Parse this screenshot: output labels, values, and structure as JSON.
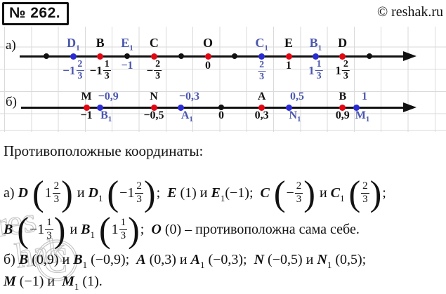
{
  "header": {
    "problem_number": "№ 262.",
    "copyright": "© reshak.ru"
  },
  "colors": {
    "red": "#e30613",
    "blue_dot": "#2b2bd4",
    "blue_text": "#4a57ae",
    "ink": "#121212"
  },
  "watermark": {
    "line1": "res",
    "line2": "hak",
    "symbol": "©"
  },
  "number_lines": {
    "a": {
      "label": "а)",
      "points": [
        {
          "v": -2,
          "dot": "black"
        },
        {
          "v": -1.6667,
          "dot": "blue",
          "top": {
            "text": "D",
            "sub": "1",
            "color": "blue"
          },
          "bottom": {
            "int": "−1",
            "num": "2",
            "den": "3",
            "color": "blue"
          }
        },
        {
          "v": -1.3333,
          "dot": "red",
          "top": {
            "text": "B",
            "color": "black"
          },
          "bottom": {
            "int": "−1",
            "num": "1",
            "den": "3",
            "color": "black"
          }
        },
        {
          "v": -1,
          "dot": "black",
          "top": {
            "text": "E",
            "sub": "1",
            "color": "blue"
          },
          "bottom": {
            "text": "−1",
            "color": "blue"
          }
        },
        {
          "v": -0.6667,
          "dot": "red",
          "top": {
            "text": "C",
            "color": "black"
          },
          "bottom": {
            "int": "−",
            "num": "2",
            "den": "3",
            "color": "black"
          }
        },
        {
          "v": -0.3333,
          "dot": "black"
        },
        {
          "v": 0,
          "dot": "red",
          "top": {
            "text": "O",
            "color": "black"
          },
          "bottom": {
            "text": "0",
            "color": "black"
          }
        },
        {
          "v": 0.3333,
          "dot": "black"
        },
        {
          "v": 0.6667,
          "dot": "blue",
          "top": {
            "text": "C",
            "sub": "1",
            "color": "blue"
          },
          "bottom": {
            "int": "",
            "num": "2",
            "den": "3",
            "color": "blue"
          }
        },
        {
          "v": 1,
          "dot": "red",
          "top": {
            "text": "E",
            "color": "black"
          },
          "bottom": {
            "text": "1",
            "color": "black"
          }
        },
        {
          "v": 1.3333,
          "dot": "blue",
          "top": {
            "text": "B",
            "sub": "1",
            "color": "blue"
          },
          "bottom": {
            "int": "1",
            "num": "1",
            "den": "3",
            "color": "blue"
          }
        },
        {
          "v": 1.6667,
          "dot": "red",
          "top": {
            "text": "D",
            "color": "black"
          },
          "bottom": {
            "int": "1",
            "num": "2",
            "den": "3",
            "color": "black"
          }
        },
        {
          "v": 2,
          "dot": "black"
        }
      ]
    },
    "b": {
      "label": "б)",
      "points": [
        {
          "v": -1,
          "dot": "red",
          "top": {
            "text": "M",
            "color": "black"
          },
          "bottom": {
            "text": "−1",
            "color": "black"
          }
        },
        {
          "v": -0.9,
          "dot": "blue",
          "top": {
            "text": "−0,9",
            "color": "blue"
          },
          "bottom": {
            "text": "B",
            "sub": "1",
            "color": "blue"
          }
        },
        {
          "v": -0.5,
          "dot": "red",
          "top": {
            "text": "N",
            "color": "black"
          },
          "bottom": {
            "text": "−0,5",
            "color": "black"
          }
        },
        {
          "v": -0.3,
          "dot": "blue",
          "top": {
            "text": "−0,3",
            "color": "blue"
          },
          "bottom": {
            "text": "A",
            "sub": "1",
            "color": "blue"
          }
        },
        {
          "v": 0,
          "dot": "black",
          "bottom": {
            "text": "0",
            "color": "black"
          }
        },
        {
          "v": 0.3,
          "dot": "red",
          "top": {
            "text": "A",
            "color": "black"
          },
          "bottom": {
            "text": "0,3",
            "color": "black"
          }
        },
        {
          "v": 0.5,
          "dot": "blue",
          "top": {
            "text": "0,5",
            "color": "blue"
          },
          "bottom": {
            "text": "N",
            "sub": "1",
            "color": "blue"
          }
        },
        {
          "v": 0.9,
          "dot": "red",
          "top": {
            "text": "B",
            "color": "black"
          },
          "bottom": {
            "text": "0,9",
            "color": "black"
          }
        },
        {
          "v": 1,
          "dot": "blue",
          "top": {
            "text": "1",
            "color": "blue"
          },
          "bottom": {
            "text": "M",
            "sub": "1",
            "color": "blue"
          }
        }
      ]
    }
  },
  "solution": {
    "title": "Противоположные координаты:",
    "lines": [
      [
        {
          "t": "а) "
        },
        {
          "i": "D"
        },
        {
          "t": " "
        },
        {
          "frac": {
            "pre": "1",
            "num": "2",
            "den": "3"
          }
        },
        {
          "t": " и "
        },
        {
          "i": "D"
        },
        {
          "sub": "1"
        },
        {
          "t": " "
        },
        {
          "frac": {
            "pre": "−1",
            "num": "2",
            "den": "3"
          }
        },
        {
          "t": ";  "
        },
        {
          "i": "E"
        },
        {
          "t": " (1) и "
        },
        {
          "i": "E"
        },
        {
          "sub": "1"
        },
        {
          "t": "(−1);  "
        },
        {
          "i": "C"
        },
        {
          "t": " "
        },
        {
          "frac": {
            "pre": "−",
            "num": "2",
            "den": "3"
          }
        },
        {
          "t": " и "
        },
        {
          "i": "C"
        },
        {
          "sub": "1"
        },
        {
          "t": " "
        },
        {
          "frac": {
            "pre": "",
            "num": "2",
            "den": "3"
          }
        },
        {
          "t": ";"
        }
      ],
      [
        {
          "i": "B"
        },
        {
          "t": " "
        },
        {
          "frac": {
            "pre": "−1",
            "num": "1",
            "den": "3"
          }
        },
        {
          "t": " и "
        },
        {
          "i": "B"
        },
        {
          "sub": "1"
        },
        {
          "t": " "
        },
        {
          "frac": {
            "pre": "1",
            "num": "1",
            "den": "3"
          }
        },
        {
          "t": ";  "
        },
        {
          "i": "O"
        },
        {
          "t": " (0) – противоположна сама себе."
        }
      ],
      [
        {
          "t": "б) "
        },
        {
          "i": "B"
        },
        {
          "t": " (0,9) и "
        },
        {
          "i": "B"
        },
        {
          "sub": "1"
        },
        {
          "t": " (−0,9);  "
        },
        {
          "i": "A"
        },
        {
          "t": " (0,3) и "
        },
        {
          "i": "A"
        },
        {
          "sub": "1"
        },
        {
          "t": " (−0,3);  "
        },
        {
          "i": "N"
        },
        {
          "t": " (−0,5) и "
        },
        {
          "i": "N"
        },
        {
          "sub": "1"
        },
        {
          "t": " (0,5);"
        }
      ],
      [
        {
          "i": "M"
        },
        {
          "t": " (−1) и  "
        },
        {
          "i": "M"
        },
        {
          "sub": "1"
        },
        {
          "t": " (1)."
        }
      ]
    ]
  }
}
